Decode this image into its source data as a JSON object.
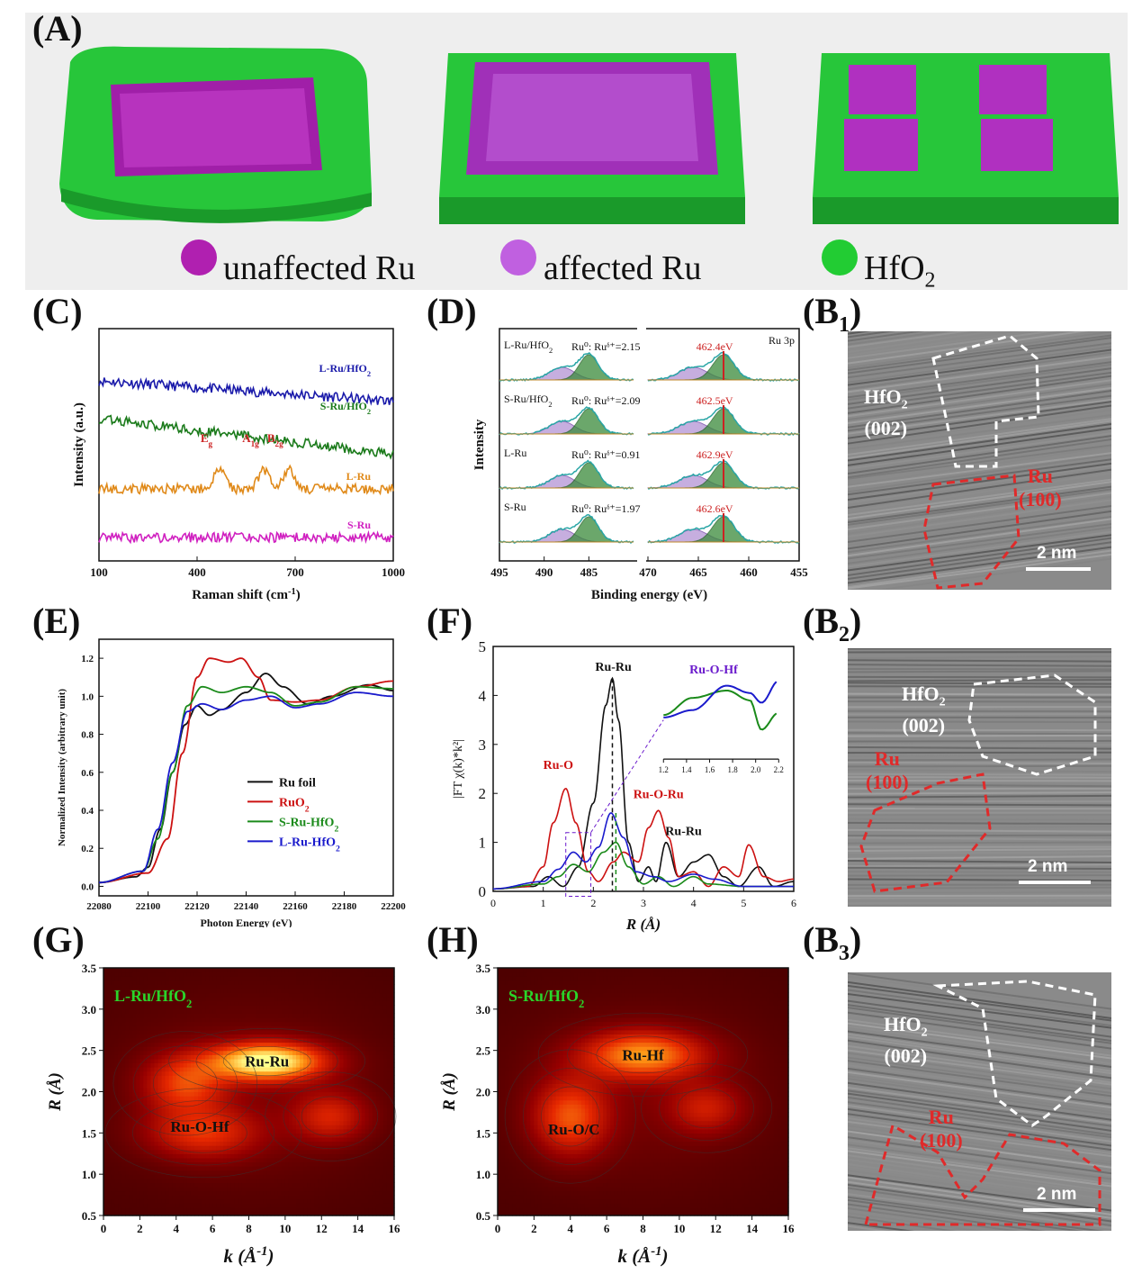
{
  "panels": {
    "A": "(A)",
    "C": "(C)",
    "D": "(D)",
    "E": "(E)",
    "F": "(F)",
    "G": "(G)",
    "H": "(H)",
    "B1": "(B",
    "B1_sub": "1",
    "B1_close": ")",
    "B2": "(B",
    "B2_sub": "2",
    "B2_close": ")",
    "B3": "(B",
    "B3_sub": "3",
    "B3_close": ")"
  },
  "panelA_legend": {
    "unaffected": "unaffected Ru",
    "affected": "affected Ru",
    "hfo2": "HfO",
    "hfo2_sub": "2",
    "colors": {
      "ru": "#b020b0",
      "hfo2": "#22cc33",
      "affected": "#c060e0"
    }
  },
  "tem_images": [
    {
      "hfo2": "HfO",
      "hfo2_sub": "2",
      "hfo2_plane": "(002)",
      "ru": "Ru",
      "ru_plane": "(100)",
      "scale": "2 nm"
    },
    {
      "hfo2": "HfO",
      "hfo2_sub": "2",
      "hfo2_plane": "(002)",
      "ru": "Ru",
      "ru_plane": "(100)",
      "scale": "2 nm"
    },
    {
      "hfo2": "HfO",
      "hfo2_sub": "2",
      "hfo2_plane": "(002)",
      "ru": "Ru",
      "ru_plane": "(100)",
      "scale": "2 nm"
    }
  ],
  "chart_data": [
    {
      "id": "C",
      "type": "line",
      "xlabel": "Raman shift (cm",
      "xlabel_sup": "-1",
      "xlabel_end": ")",
      "ylabel": "Intensity (a.u.)",
      "xlim": [
        100,
        1000
      ],
      "xticks": [
        100,
        400,
        700,
        1000
      ],
      "series": [
        {
          "name": "L-Ru/HfO",
          "name_sub": "2",
          "color": "#1a1aaa",
          "offset": 3.0,
          "slope": -0.00035
        },
        {
          "name": "S-Ru/HfO",
          "name_sub": "2",
          "color": "#1a7a1a",
          "offset": 2.3,
          "slope": -0.0006
        },
        {
          "name": "L-Ru",
          "name_sub": "",
          "color": "#e08a1a",
          "offset": 1.0,
          "slope": 0
        },
        {
          "name": "S-Ru",
          "name_sub": "",
          "color": "#d020c0",
          "offset": 0.1,
          "slope": 0
        }
      ],
      "peaks": [
        {
          "label": "E",
          "sub": "g",
          "x": 470
        },
        {
          "label": "A",
          "sub": "1g",
          "x": 605
        },
        {
          "label": "B",
          "sub": "2g",
          "x": 680
        }
      ]
    },
    {
      "id": "D",
      "type": "line",
      "xlabel": "Binding energy (eV)",
      "ylabel": "Intensity",
      "xticks_left": [
        495,
        490,
        485
      ],
      "xticks_right": [
        470,
        465,
        460,
        455
      ],
      "corner_label": "Ru 3p",
      "rows": [
        {
          "name": "L-Ru/HfO",
          "name_sub": "2",
          "ratio": "Ru⁰: Ruᵟ⁺=2.15",
          "energy": "462.4eV"
        },
        {
          "name": "S-Ru/HfO",
          "name_sub": "2",
          "ratio": "Ru⁰: Ruᵟ⁺=2.09",
          "energy": "462.5eV"
        },
        {
          "name": "L-Ru",
          "name_sub": "",
          "ratio": "Ru⁰: Ruᵟ⁺=0.91",
          "energy": "462.9eV"
        },
        {
          "name": "S-Ru",
          "name_sub": "",
          "ratio": "Ru⁰: Ruᵟ⁺=1.97",
          "energy": "462.6eV"
        }
      ]
    },
    {
      "id": "E",
      "type": "line",
      "xlabel": "Photon Energy (eV)",
      "ylabel": "Normalized Intensity (arbitrary unit)",
      "xlim": [
        22080,
        22200
      ],
      "ylim": [
        -0.05,
        1.3
      ],
      "xticks": [
        22080,
        22100,
        22120,
        22140,
        22160,
        22180,
        22200
      ],
      "yticks": [
        0.0,
        0.2,
        0.4,
        0.6,
        0.8,
        1.0,
        1.2
      ],
      "series": [
        {
          "name": "Ru foil",
          "color": "#111111",
          "e0": 22114,
          "points": [
            [
              22080,
              0.02
            ],
            [
              22095,
              0.05
            ],
            [
              22100,
              0.1
            ],
            [
              22105,
              0.3
            ],
            [
              22110,
              0.6
            ],
            [
              22115,
              0.85
            ],
            [
              22120,
              0.95
            ],
            [
              22125,
              0.9
            ],
            [
              22130,
              0.93
            ],
            [
              22140,
              1.02
            ],
            [
              22148,
              1.12
            ],
            [
              22155,
              1.05
            ],
            [
              22165,
              0.96
            ],
            [
              22175,
              1.0
            ],
            [
              22190,
              1.06
            ],
            [
              22200,
              1.03
            ]
          ]
        },
        {
          "name": "RuO",
          "name_sub": "2",
          "color": "#cc1111",
          "points": [
            [
              22080,
              0.02
            ],
            [
              22100,
              0.07
            ],
            [
              22108,
              0.25
            ],
            [
              22114,
              0.7
            ],
            [
              22120,
              1.1
            ],
            [
              22125,
              1.2
            ],
            [
              22133,
              1.18
            ],
            [
              22138,
              1.2
            ],
            [
              22145,
              1.1
            ],
            [
              22150,
              0.98
            ],
            [
              22160,
              0.97
            ],
            [
              22170,
              0.98
            ],
            [
              22185,
              1.05
            ],
            [
              22200,
              1.08
            ]
          ]
        },
        {
          "name": "S-Ru-HfO",
          "name_sub": "2",
          "color": "#1a8a1a",
          "points": [
            [
              22080,
              0.02
            ],
            [
              22098,
              0.08
            ],
            [
              22104,
              0.25
            ],
            [
              22110,
              0.6
            ],
            [
              22116,
              0.95
            ],
            [
              22122,
              1.05
            ],
            [
              22130,
              1.02
            ],
            [
              22140,
              1.05
            ],
            [
              22150,
              1.02
            ],
            [
              22160,
              0.95
            ],
            [
              22170,
              0.97
            ],
            [
              22185,
              1.05
            ],
            [
              22200,
              1.04
            ]
          ]
        },
        {
          "name": "L-Ru-HfO",
          "name_sub": "2",
          "color": "#1a1acc",
          "points": [
            [
              22080,
              0.02
            ],
            [
              22098,
              0.08
            ],
            [
              22104,
              0.3
            ],
            [
              22110,
              0.65
            ],
            [
              22116,
              0.92
            ],
            [
              22122,
              0.96
            ],
            [
              22130,
              0.93
            ],
            [
              22140,
              0.98
            ],
            [
              22150,
              1.0
            ],
            [
              22160,
              0.94
            ],
            [
              22170,
              0.96
            ],
            [
              22185,
              1.02
            ],
            [
              22200,
              1.0
            ]
          ]
        }
      ]
    },
    {
      "id": "F",
      "type": "line",
      "xlabel": "R",
      "xlabel_unit": " (Å)",
      "ylabel": "|FT χ(k)*k²|",
      "xlim": [
        0,
        6
      ],
      "ylim": [
        0,
        5
      ],
      "xticks": [
        0,
        1,
        2,
        3,
        4,
        5,
        6
      ],
      "yticks": [
        0,
        1,
        2,
        3,
        4,
        5
      ],
      "annotations": [
        {
          "text": "Ru-Ru",
          "x": 2.4,
          "y": 4.5,
          "color": "#111111"
        },
        {
          "text": "Ru-O",
          "x": 1.3,
          "y": 2.5,
          "color": "#cc1111"
        },
        {
          "text": "Ru-O-Ru",
          "x": 3.3,
          "y": 1.9,
          "color": "#cc1111"
        },
        {
          "text": "Ru-Ru",
          "x": 3.8,
          "y": 1.15,
          "color": "#111111"
        },
        {
          "text": "Ru-O-Hf",
          "x": 4.4,
          "y": 4.45,
          "color": "#6a1acc"
        }
      ],
      "series": [
        {
          "name": "Ru foil",
          "color": "#111111",
          "points": [
            [
              0,
              0.05
            ],
            [
              0.8,
              0.1
            ],
            [
              1.1,
              0.3
            ],
            [
              1.4,
              0.1
            ],
            [
              1.7,
              0.5
            ],
            [
              2.0,
              1.8
            ],
            [
              2.25,
              3.8
            ],
            [
              2.38,
              4.35
            ],
            [
              2.5,
              3.5
            ],
            [
              2.7,
              1.0
            ],
            [
              2.9,
              0.2
            ],
            [
              3.1,
              0.5
            ],
            [
              3.25,
              0.2
            ],
            [
              3.45,
              1.0
            ],
            [
              3.7,
              0.3
            ],
            [
              4.0,
              0.6
            ],
            [
              4.3,
              0.75
            ],
            [
              4.6,
              0.3
            ],
            [
              4.9,
              0.1
            ],
            [
              5.3,
              0.5
            ],
            [
              5.6,
              0.1
            ],
            [
              6,
              0.2
            ]
          ]
        },
        {
          "name": "RuO2",
          "color": "#cc1111",
          "points": [
            [
              0,
              0.05
            ],
            [
              0.7,
              0.1
            ],
            [
              1.0,
              0.5
            ],
            [
              1.2,
              1.4
            ],
            [
              1.45,
              2.1
            ],
            [
              1.65,
              1.4
            ],
            [
              1.9,
              0.4
            ],
            [
              2.1,
              0.2
            ],
            [
              2.4,
              0.6
            ],
            [
              2.6,
              0.8
            ],
            [
              2.9,
              0.6
            ],
            [
              3.1,
              1.3
            ],
            [
              3.3,
              1.65
            ],
            [
              3.5,
              1.1
            ],
            [
              3.7,
              0.3
            ],
            [
              4.0,
              0.4
            ],
            [
              4.3,
              0.1
            ],
            [
              4.6,
              0.5
            ],
            [
              4.9,
              0.3
            ],
            [
              5.1,
              0.95
            ],
            [
              5.4,
              0.3
            ],
            [
              5.7,
              0.2
            ],
            [
              6,
              0.25
            ]
          ]
        },
        {
          "name": "S-Ru-HfO2",
          "color": "#1a8a1a",
          "points": [
            [
              0,
              0.05
            ],
            [
              1.0,
              0.15
            ],
            [
              1.3,
              0.3
            ],
            [
              1.6,
              0.55
            ],
            [
              1.9,
              0.4
            ],
            [
              2.2,
              0.8
            ],
            [
              2.45,
              1.0
            ],
            [
              2.7,
              0.5
            ],
            [
              3.0,
              0.15
            ],
            [
              3.3,
              0.3
            ],
            [
              3.6,
              0.1
            ],
            [
              4.0,
              0.3
            ],
            [
              4.3,
              0.15
            ],
            [
              5.0,
              0.1
            ],
            [
              6,
              0.1
            ]
          ]
        },
        {
          "name": "L-Ru-HfO2",
          "color": "#1a1acc",
          "points": [
            [
              0,
              0.05
            ],
            [
              1.0,
              0.2
            ],
            [
              1.3,
              0.45
            ],
            [
              1.6,
              0.8
            ],
            [
              1.85,
              0.6
            ],
            [
              2.1,
              0.9
            ],
            [
              2.35,
              1.6
            ],
            [
              2.6,
              1.1
            ],
            [
              2.85,
              0.4
            ],
            [
              3.2,
              0.3
            ],
            [
              3.5,
              0.2
            ],
            [
              4.0,
              0.35
            ],
            [
              4.4,
              0.25
            ],
            [
              5.0,
              0.1
            ],
            [
              6,
              0.1
            ]
          ]
        }
      ],
      "inset": {
        "xticks": [
          1.2,
          1.4,
          1.6,
          1.8,
          2.0,
          2.2
        ]
      }
    },
    {
      "id": "G",
      "type": "heatmap",
      "title": "L-Ru/HfO",
      "title_sub": "2",
      "xlabel": "k",
      "xlabel_unit": " (Å",
      "xlabel_sup": "-1",
      "xlabel_end": ")",
      "ylabel": "R",
      "ylabel_unit": " (Å)",
      "xlim": [
        0,
        16
      ],
      "ylim": [
        0.5,
        3.5
      ],
      "xticks": [
        0,
        2,
        4,
        6,
        8,
        10,
        12,
        14,
        16
      ],
      "yticks": [
        0.5,
        1.0,
        1.5,
        2.0,
        2.5,
        3.0,
        3.5
      ],
      "labels": [
        {
          "text": "Ru-Ru",
          "k": 9.0,
          "r": 2.37
        },
        {
          "text": "Ru-O-Hf",
          "k": 5.3,
          "r": 1.58
        }
      ],
      "blobs": [
        {
          "k": 9.0,
          "r": 2.37,
          "a": 1.0,
          "sk": 3.0,
          "sr": 0.22
        },
        {
          "k": 4.5,
          "r": 2.1,
          "a": 0.45,
          "sk": 2.2,
          "sr": 0.35
        },
        {
          "k": 5.5,
          "r": 1.5,
          "a": 0.4,
          "sk": 3.0,
          "sr": 0.3
        },
        {
          "k": 12.5,
          "r": 1.7,
          "a": 0.35,
          "sk": 2.0,
          "sr": 0.3
        }
      ]
    },
    {
      "id": "H",
      "type": "heatmap",
      "title": "S-Ru/HfO",
      "title_sub": "2",
      "xlabel": "k",
      "xlabel_unit": " (Å",
      "xlabel_sup": "-1",
      "xlabel_end": ")",
      "ylabel": "R",
      "ylabel_unit": " (Å)",
      "xlim": [
        0,
        16
      ],
      "ylim": [
        0.5,
        3.5
      ],
      "xticks": [
        0,
        2,
        4,
        6,
        8,
        10,
        12,
        14,
        16
      ],
      "yticks": [
        0.5,
        1.0,
        1.5,
        2.0,
        2.5,
        3.0,
        3.5
      ],
      "labels": [
        {
          "text": "Ru-Hf",
          "k": 8.0,
          "r": 2.45
        },
        {
          "text": "Ru-O/C",
          "k": 4.2,
          "r": 1.55
        }
      ],
      "blobs": [
        {
          "k": 8.0,
          "r": 2.45,
          "a": 0.65,
          "sk": 3.2,
          "sr": 0.28
        },
        {
          "k": 4.0,
          "r": 1.7,
          "a": 0.5,
          "sk": 2.0,
          "sr": 0.45
        },
        {
          "k": 11.5,
          "r": 1.8,
          "a": 0.3,
          "sk": 2.0,
          "sr": 0.3
        }
      ]
    }
  ]
}
